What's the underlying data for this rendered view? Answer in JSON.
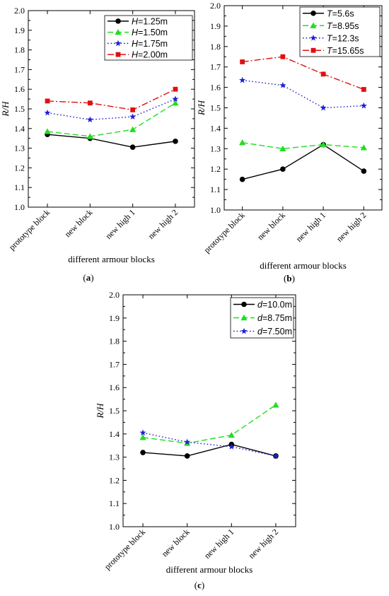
{
  "figure": {
    "panels": [
      {
        "id": "a",
        "caption_letter": "a"
      },
      {
        "id": "b",
        "caption_letter": "b"
      },
      {
        "id": "c",
        "caption_letter": "c"
      }
    ]
  },
  "chart_data": [
    {
      "panel": "a",
      "type": "line",
      "categories": [
        "prototype block",
        "new block",
        "new high 1",
        "new high 2"
      ],
      "xlabel": "different armour blocks",
      "ylabel": "R/H",
      "ylim": [
        1.0,
        2.0
      ],
      "yticks": [
        "1.0",
        "1.1",
        "1.2",
        "1.3",
        "1.4",
        "1.5",
        "1.6",
        "1.7",
        "1.8",
        "1.9",
        "2.0"
      ],
      "legend_position": "top-right",
      "series": [
        {
          "name": "H=1.25m",
          "var": "H",
          "value": "=1.25m",
          "color": "#000000",
          "marker": "circle",
          "dash": "solid",
          "values": [
            1.37,
            1.35,
            1.305,
            1.335
          ]
        },
        {
          "name": "H=1.50m",
          "var": "H",
          "value": "=1.50m",
          "color": "#22dd22",
          "marker": "triangle",
          "dash": "dashed",
          "values": [
            1.385,
            1.36,
            1.395,
            1.53
          ]
        },
        {
          "name": "H=1.75m",
          "var": "H",
          "value": "=1.75m",
          "color": "#1f1fd6",
          "marker": "star",
          "dash": "dotted",
          "values": [
            1.48,
            1.445,
            1.46,
            1.55
          ]
        },
        {
          "name": "H=2.00m",
          "var": "H",
          "value": "=2.00m",
          "color": "#e01010",
          "marker": "square",
          "dash": "dashdot",
          "values": [
            1.54,
            1.53,
            1.495,
            1.6
          ]
        }
      ]
    },
    {
      "panel": "b",
      "type": "line",
      "categories": [
        "prototype block",
        "new block",
        "new high 1",
        "new high 2"
      ],
      "xlabel": "different armour blocks",
      "ylabel": "R/H",
      "ylim": [
        1.0,
        2.0
      ],
      "yticks": [
        "1.0",
        "1.1",
        "1.2",
        "1.3",
        "1.4",
        "1.5",
        "1.6",
        "1.7",
        "1.8",
        "1.9",
        "2.0"
      ],
      "legend_position": "top-right",
      "series": [
        {
          "name": "T=5.6s",
          "var": "T",
          "value": "=5.6s",
          "color": "#000000",
          "marker": "circle",
          "dash": "solid",
          "values": [
            1.15,
            1.2,
            1.32,
            1.19
          ]
        },
        {
          "name": "T=8.95s",
          "var": "T",
          "value": "=8.95s",
          "color": "#22dd22",
          "marker": "triangle",
          "dash": "dashed",
          "values": [
            1.33,
            1.3,
            1.32,
            1.305
          ]
        },
        {
          "name": "T=12.3s",
          "var": "T",
          "value": "=12.3s",
          "color": "#1f1fd6",
          "marker": "star",
          "dash": "dotted",
          "values": [
            1.635,
            1.61,
            1.5,
            1.51
          ]
        },
        {
          "name": "T=15.65s",
          "var": "T",
          "value": "=15.65s",
          "color": "#e01010",
          "marker": "square",
          "dash": "dashdot",
          "values": [
            1.725,
            1.75,
            1.665,
            1.59
          ]
        }
      ]
    },
    {
      "panel": "c",
      "type": "line",
      "categories": [
        "prototype block",
        "new block",
        "new high 1",
        "new high 2"
      ],
      "xlabel": "different armour blocks",
      "ylabel": "R/H",
      "ylim": [
        1.0,
        2.0
      ],
      "yticks": [
        "1.0",
        "1.1",
        "1.2",
        "1.3",
        "1.4",
        "1.5",
        "1.6",
        "1.7",
        "1.8",
        "1.9",
        "2.0"
      ],
      "legend_position": "top-right",
      "series": [
        {
          "name": "d=10.0m",
          "var": "d",
          "value": "=10.0m",
          "color": "#000000",
          "marker": "circle",
          "dash": "solid",
          "values": [
            1.32,
            1.305,
            1.355,
            1.305
          ]
        },
        {
          "name": "d=8.75m",
          "var": "d",
          "value": "=8.75m",
          "color": "#22dd22",
          "marker": "triangle",
          "dash": "dashed",
          "values": [
            1.385,
            1.36,
            1.395,
            1.525
          ]
        },
        {
          "name": "d=7.50m",
          "var": "d",
          "value": "=7.50m",
          "color": "#1f1fd6",
          "marker": "star",
          "dash": "dotted",
          "values": [
            1.405,
            1.365,
            1.345,
            1.305
          ]
        }
      ]
    }
  ]
}
